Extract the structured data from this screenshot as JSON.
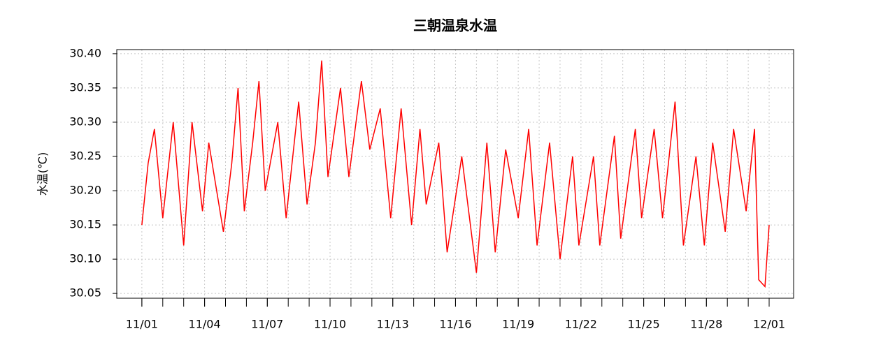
{
  "chart_data": {
    "type": "line",
    "title": "三朝温泉水温",
    "y_label": "水温(℃)",
    "x": [
      0,
      0.3,
      0.6,
      1.0,
      1.5,
      2.0,
      2.4,
      2.9,
      3.2,
      3.9,
      4.3,
      4.6,
      4.9,
      5.3,
      5.6,
      5.9,
      6.5,
      6.9,
      7.5,
      7.9,
      8.3,
      8.6,
      8.9,
      9.5,
      9.9,
      10.5,
      10.9,
      11.4,
      11.9,
      12.4,
      12.9,
      13.3,
      13.6,
      14.2,
      14.6,
      15.3,
      16.0,
      16.5,
      16.9,
      17.4,
      18.0,
      18.5,
      18.9,
      19.5,
      20.0,
      20.6,
      20.9,
      21.6,
      21.9,
      22.6,
      22.9,
      23.6,
      23.9,
      24.5,
      24.9,
      25.5,
      25.9,
      26.5,
      26.9,
      27.3,
      27.9,
      28.3,
      28.9,
      29.3,
      29.5,
      29.8,
      30.0
    ],
    "series": [
      {
        "name": "水温",
        "color": "#ff0000",
        "values": [
          30.15,
          30.24,
          30.29,
          30.16,
          30.3,
          30.12,
          30.3,
          30.17,
          30.27,
          30.14,
          30.24,
          30.35,
          30.17,
          30.27,
          30.36,
          30.2,
          30.3,
          30.16,
          30.33,
          30.18,
          30.27,
          30.39,
          30.22,
          30.35,
          30.22,
          30.36,
          30.26,
          30.32,
          30.16,
          30.32,
          30.15,
          30.29,
          30.18,
          30.27,
          30.11,
          30.25,
          30.08,
          30.27,
          30.11,
          30.26,
          30.16,
          30.29,
          30.12,
          30.27,
          30.1,
          30.25,
          30.12,
          30.25,
          30.12,
          30.28,
          30.13,
          30.29,
          30.16,
          30.29,
          30.16,
          30.33,
          30.12,
          30.25,
          30.12,
          30.27,
          30.14,
          30.29,
          30.17,
          30.29,
          30.07,
          30.06,
          30.15
        ]
      }
    ],
    "xlim": [
      -1.2,
      31.17
    ],
    "ylim": [
      30.043,
      30.406
    ],
    "xticks": [
      {
        "value": 0,
        "label": "11/01"
      },
      {
        "value": 3,
        "label": "11/04"
      },
      {
        "value": 6,
        "label": "11/07"
      },
      {
        "value": 9,
        "label": "11/10"
      },
      {
        "value": 12,
        "label": "11/13"
      },
      {
        "value": 15,
        "label": "11/16"
      },
      {
        "value": 18,
        "label": "11/19"
      },
      {
        "value": 21,
        "label": "11/22"
      },
      {
        "value": 24,
        "label": "11/25"
      },
      {
        "value": 27,
        "label": "11/28"
      },
      {
        "value": 30,
        "label": "12/01"
      }
    ],
    "xminor_ticks": [
      0,
      1,
      2,
      3,
      4,
      5,
      6,
      7,
      8,
      9,
      10,
      11,
      12,
      13,
      14,
      15,
      16,
      17,
      18,
      19,
      20,
      21,
      22,
      23,
      24,
      25,
      26,
      27,
      28,
      29,
      30
    ],
    "yticks": [
      {
        "value": 30.05,
        "label": "30.05"
      },
      {
        "value": 30.1,
        "label": "30.10"
      },
      {
        "value": 30.15,
        "label": "30.15"
      },
      {
        "value": 30.2,
        "label": "30.20"
      },
      {
        "value": 30.25,
        "label": "30.25"
      },
      {
        "value": 30.3,
        "label": "30.30"
      },
      {
        "value": 30.35,
        "label": "30.35"
      },
      {
        "value": 30.4,
        "label": "30.40"
      }
    ],
    "grid": true
  }
}
